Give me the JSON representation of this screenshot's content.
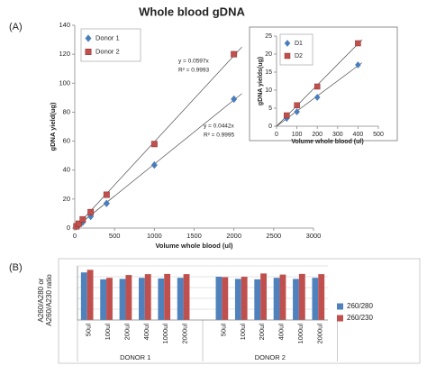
{
  "chart_data": [
    {
      "type": "scatter",
      "panel_label": "(A)",
      "title": "Whole blood gDNA",
      "xlabel": "Volume whole blood (ul)",
      "ylabel": "gDNA yield(ug)",
      "xlim": [
        0,
        3000
      ],
      "xticks": [
        0,
        500,
        1000,
        1500,
        2000,
        2500,
        3000
      ],
      "ylim": [
        0,
        140
      ],
      "yticks": [
        0,
        20,
        40,
        60,
        80,
        100,
        120,
        140
      ],
      "x": [
        20,
        50,
        100,
        200,
        400,
        1000,
        2000
      ],
      "series": [
        {
          "name": "Donor 1",
          "color": "#4a7ebb",
          "marker": "diamond",
          "values": [
            1,
            2,
            4,
            8,
            17,
            43.5,
            89
          ],
          "trendline": "y = 0.0442x",
          "r2": "R² = 0.9995"
        },
        {
          "name": "Donor 2",
          "color": "#c0504d",
          "marker": "square",
          "values": [
            1.2,
            3,
            6,
            11,
            23,
            58,
            120
          ],
          "trendline": "y = 0.0597x",
          "r2": "R² = 0.9993"
        }
      ]
    },
    {
      "type": "scatter",
      "xlabel": "Volume whole blood (ul)",
      "ylabel": "gDNA yields(ug)",
      "xlim": [
        0,
        500
      ],
      "xticks": [
        0,
        100,
        200,
        300,
        400,
        500
      ],
      "ylim": [
        0,
        25
      ],
      "yticks": [
        0,
        5,
        10,
        15,
        20,
        25
      ],
      "x": [
        50,
        100,
        200,
        400
      ],
      "series": [
        {
          "name": "D1",
          "color": "#4a7ebb",
          "marker": "diamond",
          "values": [
            2.2,
            4,
            8,
            17
          ]
        },
        {
          "name": "D2",
          "color": "#c0504d",
          "marker": "square",
          "values": [
            3,
            5.8,
            11,
            23
          ]
        }
      ]
    },
    {
      "type": "bar",
      "panel_label": "(B)",
      "ylabel": [
        "A260/A280 or",
        "A260/A230 ratio"
      ],
      "categories": [
        "50ul",
        "100ul",
        "200ul",
        "400ul",
        "1000ul",
        "2000ul",
        "50ul",
        "100ul",
        "200ul",
        "400ul",
        "1000ul",
        "2000ul"
      ],
      "groups": [
        "DONOR 1",
        "DONOR 2"
      ],
      "ylim": [
        0,
        2.5
      ],
      "yticks": [
        0,
        0.5,
        1,
        1.5,
        2,
        2.5
      ],
      "show_ytick_labels": false,
      "grid": true,
      "series": [
        {
          "name": "260/280",
          "color": "#4f81bd",
          "values": [
            2.2,
            1.88,
            1.9,
            1.95,
            1.92,
            1.95,
            2.0,
            1.9,
            1.88,
            1.95,
            1.9,
            1.95
          ]
        },
        {
          "name": "260/230",
          "color": "#c0504d",
          "values": [
            2.32,
            1.95,
            2.08,
            2.12,
            2.13,
            2.12,
            1.98,
            2.0,
            2.15,
            2.1,
            2.13,
            2.12
          ]
        }
      ]
    }
  ]
}
